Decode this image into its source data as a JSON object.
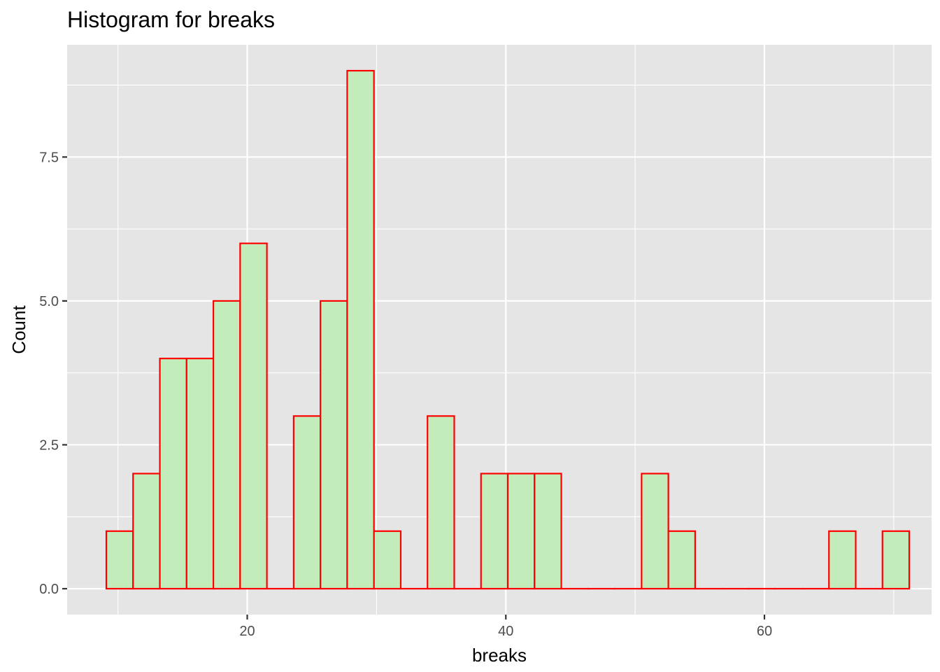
{
  "chart_data": {
    "type": "bar",
    "title": "Histogram for breaks",
    "xlabel": "breaks",
    "ylabel": "Count",
    "xlim": [
      6.07,
      72.93
    ],
    "ylim": [
      -0.45,
      9.45
    ],
    "x_ticks": [
      20,
      40,
      60
    ],
    "x_tick_labels": [
      "20",
      "40",
      "60"
    ],
    "y_ticks": [
      0,
      2.5,
      5,
      7.5
    ],
    "y_tick_labels": [
      "0.0",
      "2.5",
      "5.0",
      "7.5"
    ],
    "grid": true,
    "colors": {
      "panel": "#e5e5e5",
      "grid": "#ffffff",
      "bar_fill": "#c2edbb",
      "bar_outline": "#ff0000",
      "tick": "#333333"
    },
    "bins": [
      {
        "start": 9.1,
        "end": 11.17,
        "count": 1
      },
      {
        "start": 11.17,
        "end": 13.24,
        "count": 2
      },
      {
        "start": 13.24,
        "end": 15.31,
        "count": 4
      },
      {
        "start": 15.31,
        "end": 17.38,
        "count": 4
      },
      {
        "start": 17.38,
        "end": 19.45,
        "count": 5
      },
      {
        "start": 19.45,
        "end": 21.52,
        "count": 6
      },
      {
        "start": 21.52,
        "end": 23.59,
        "count": 0
      },
      {
        "start": 23.59,
        "end": 25.66,
        "count": 3
      },
      {
        "start": 25.66,
        "end": 27.73,
        "count": 5
      },
      {
        "start": 27.73,
        "end": 29.8,
        "count": 9
      },
      {
        "start": 29.8,
        "end": 31.87,
        "count": 1
      },
      {
        "start": 31.87,
        "end": 33.94,
        "count": 0
      },
      {
        "start": 33.94,
        "end": 36.01,
        "count": 3
      },
      {
        "start": 36.01,
        "end": 38.08,
        "count": 0
      },
      {
        "start": 38.08,
        "end": 40.15,
        "count": 2
      },
      {
        "start": 40.15,
        "end": 42.22,
        "count": 2
      },
      {
        "start": 42.22,
        "end": 44.29,
        "count": 2
      },
      {
        "start": 44.29,
        "end": 46.36,
        "count": 0
      },
      {
        "start": 46.36,
        "end": 48.43,
        "count": 0
      },
      {
        "start": 48.43,
        "end": 50.5,
        "count": 0
      },
      {
        "start": 50.5,
        "end": 52.57,
        "count": 2
      },
      {
        "start": 52.57,
        "end": 54.64,
        "count": 1
      },
      {
        "start": 54.64,
        "end": 56.71,
        "count": 0
      },
      {
        "start": 56.71,
        "end": 58.78,
        "count": 0
      },
      {
        "start": 58.78,
        "end": 60.85,
        "count": 0
      },
      {
        "start": 60.85,
        "end": 62.92,
        "count": 0
      },
      {
        "start": 62.92,
        "end": 64.99,
        "count": 0
      },
      {
        "start": 64.99,
        "end": 67.06,
        "count": 1
      },
      {
        "start": 67.06,
        "end": 69.13,
        "count": 0
      },
      {
        "start": 69.13,
        "end": 71.2,
        "count": 1
      }
    ]
  }
}
